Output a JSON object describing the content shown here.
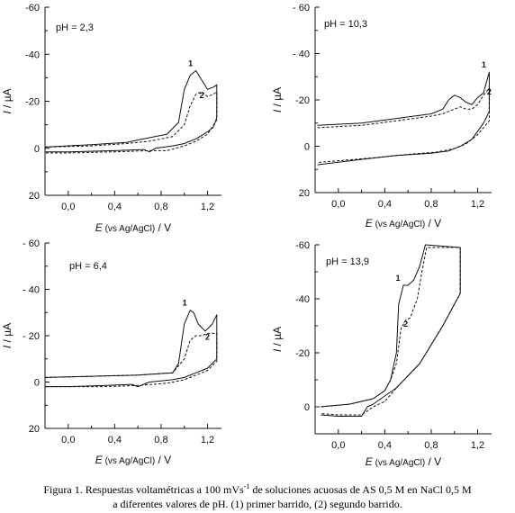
{
  "chart_data": [
    {
      "type": "line",
      "annotation": "pH = 2,3",
      "ylabel_var": "I",
      "ylabel_unit": " / µA",
      "xlabel_var": "E",
      "xlabel_note": " (vs Ag/AgCl)",
      "xlabel_unit": " / V",
      "xlim": [
        -0.2,
        1.32
      ],
      "ylim": [
        20,
        -60
      ],
      "y_ticks": [
        "-60",
        "-40",
        "-20",
        "0",
        "20"
      ],
      "y_tick_values": [
        -60,
        -40,
        -20,
        0,
        20
      ],
      "x_ticks": [
        "0,0",
        "0,4",
        "0,8",
        "1,2"
      ],
      "x_tick_values": [
        0.0,
        0.4,
        0.8,
        1.2
      ],
      "series": [
        {
          "name": "1",
          "style": "solid",
          "x": [
            -0.2,
            0.2,
            0.5,
            0.65,
            0.85,
            0.95,
            1.0,
            1.05,
            1.1,
            1.15,
            1.2,
            1.25,
            1.28,
            1.28,
            1.25,
            1.2,
            1.15,
            1.1,
            1.05,
            1.0,
            0.9,
            0.75,
            0.7,
            0.65,
            0.4,
            0.0,
            -0.2
          ],
          "y": [
            -0.5,
            -1.5,
            -2.5,
            -4,
            -6,
            -11,
            -25,
            -31,
            -33,
            -29,
            -25,
            -26,
            -27,
            -13,
            -9,
            -7,
            -5.5,
            -4,
            -3,
            -2,
            -1,
            0,
            1.5,
            0.5,
            1,
            1.5,
            1.5
          ]
        },
        {
          "name": "2",
          "style": "dashed",
          "x": [
            -0.2,
            0.2,
            0.5,
            0.7,
            0.9,
            1.0,
            1.05,
            1.1,
            1.15,
            1.2,
            1.25,
            1.28,
            1.28,
            1.2,
            1.1,
            1.0,
            0.85,
            0.7,
            0.4,
            0.0,
            -0.2
          ],
          "y": [
            -0.5,
            -1,
            -2,
            -3,
            -5,
            -10,
            -18,
            -23,
            -24,
            -22,
            -23,
            -24,
            -12,
            -6,
            -3,
            -1,
            1,
            1,
            1.5,
            2,
            2
          ]
        }
      ]
    },
    {
      "type": "line",
      "annotation": "pH = 10,3",
      "ylabel_var": "I",
      "ylabel_unit": " / µA",
      "xlabel_var": "E",
      "xlabel_note": " (vs Ag/AgCl)",
      "xlabel_unit": " / V",
      "xlim": [
        -0.2,
        1.32
      ],
      "ylim": [
        20,
        -60
      ],
      "y_ticks": [
        "- 60",
        "- 40",
        "-20",
        "0",
        "20"
      ],
      "y_tick_values": [
        -60,
        -40,
        -20,
        0,
        20
      ],
      "x_ticks": [
        "0,0",
        "0,4",
        "0,8",
        "1,2"
      ],
      "x_tick_values": [
        0.0,
        0.4,
        0.8,
        1.2
      ],
      "series": [
        {
          "name": "1",
          "style": "solid",
          "x": [
            -0.18,
            0.2,
            0.5,
            0.8,
            0.9,
            0.95,
            1.0,
            1.05,
            1.1,
            1.15,
            1.2,
            1.25,
            1.3,
            1.3,
            1.25,
            1.15,
            1.05,
            0.95,
            0.8,
            0.5,
            0.15,
            -0.18
          ],
          "y": [
            -9,
            -10,
            -12,
            -14,
            -16,
            -20,
            -22,
            -21,
            -19,
            -18,
            -21,
            -23,
            -32,
            -15,
            -10,
            -3,
            0,
            2,
            3,
            4,
            6,
            8
          ]
        },
        {
          "name": "2",
          "style": "dashed",
          "x": [
            -0.18,
            0.2,
            0.5,
            0.8,
            0.9,
            1.0,
            1.05,
            1.1,
            1.15,
            1.2,
            1.25,
            1.3,
            1.3,
            1.2,
            1.1,
            1.0,
            0.85,
            0.6,
            0.3,
            -0.18
          ],
          "y": [
            -8,
            -9,
            -11,
            -13,
            -14,
            -16,
            -17,
            -16,
            -16,
            -18,
            -22,
            -25,
            -11,
            -5,
            -1,
            1,
            2.5,
            3.5,
            5,
            7
          ]
        }
      ]
    },
    {
      "type": "line",
      "annotation": "pH = 6,4",
      "ylabel_var": "I",
      "ylabel_unit": " / µA",
      "xlabel_var": "E",
      "xlabel_note": " (vs Ag/AgCl)",
      "xlabel_unit": " / V",
      "xlim": [
        -0.2,
        1.32
      ],
      "ylim": [
        20,
        -60
      ],
      "y_ticks": [
        "- 60",
        "- 40",
        "- 20",
        "0",
        "20"
      ],
      "y_tick_values": [
        -60,
        -40,
        -20,
        0,
        20
      ],
      "x_ticks": [
        "0,0",
        "0,4",
        "0,8",
        "1,2"
      ],
      "x_tick_values": [
        0.0,
        0.4,
        0.8,
        1.2
      ],
      "series": [
        {
          "name": "1",
          "style": "solid",
          "x": [
            -0.2,
            0.2,
            0.6,
            0.9,
            0.95,
            1.0,
            1.05,
            1.08,
            1.12,
            1.18,
            1.24,
            1.28,
            1.28,
            1.2,
            1.1,
            1.0,
            0.9,
            0.7,
            0.6,
            0.55,
            0.3,
            0.0,
            -0.2
          ],
          "y": [
            -2,
            -2.5,
            -3,
            -4,
            -8,
            -25,
            -31,
            -30,
            -25,
            -22,
            -25,
            -29,
            -10,
            -6,
            -4,
            -2,
            -1,
            0,
            2,
            1,
            1.5,
            2,
            2
          ]
        },
        {
          "name": "2",
          "style": "dashed",
          "x": [
            -0.2,
            0.2,
            0.6,
            0.9,
            1.0,
            1.05,
            1.1,
            1.15,
            1.2,
            1.25,
            1.28,
            1.28,
            1.2,
            1.1,
            1.0,
            0.85,
            0.6,
            0.3,
            -0.2
          ],
          "y": [
            -2,
            -2.5,
            -3,
            -4,
            -10,
            -18,
            -20,
            -20,
            -21,
            -21,
            -21,
            -9,
            -5,
            -3,
            -1,
            0.5,
            1.5,
            2,
            2
          ]
        }
      ]
    },
    {
      "type": "line",
      "annotation": "pH = 13,9",
      "ylabel_var": "I",
      "ylabel_unit": " / µA",
      "xlabel_var": "E",
      "xlabel_note": " (vs Ag/AgCl)",
      "xlabel_unit": " / V",
      "xlim": [
        -0.2,
        1.32
      ],
      "ylim": [
        10,
        -60
      ],
      "y_ticks": [
        "-60",
        "-40",
        "-20",
        "0"
      ],
      "y_tick_values": [
        -60,
        -40,
        -20,
        0
      ],
      "x_ticks": [
        "0,0",
        "0,4",
        "0,8",
        "1,2"
      ],
      "x_tick_values": [
        0.0,
        0.4,
        0.8,
        1.2
      ],
      "series": [
        {
          "name": "1",
          "style": "solid",
          "x": [
            -0.15,
            0.1,
            0.3,
            0.4,
            0.45,
            0.5,
            0.52,
            0.56,
            0.6,
            0.65,
            0.7,
            0.75,
            1.05,
            1.05,
            0.9,
            0.7,
            0.5,
            0.3,
            0.25,
            0.2,
            0.0,
            -0.15
          ],
          "y": [
            0,
            -1,
            -3,
            -6,
            -10,
            -20,
            -38,
            -45,
            -45,
            -47,
            -52,
            -60,
            -59,
            -42,
            -30,
            -16,
            -7,
            -1,
            0,
            3.5,
            3.5,
            3
          ]
        },
        {
          "name": "2",
          "style": "dashed",
          "x": [
            -0.15,
            0.1,
            0.3,
            0.4,
            0.45,
            0.5,
            0.54,
            0.58,
            0.62,
            0.68,
            0.72,
            0.76,
            1.05,
            1.05,
            0.9,
            0.7,
            0.5,
            0.4,
            0.3,
            0.2,
            0.0,
            -0.15
          ],
          "y": [
            0,
            -1,
            -3,
            -6,
            -10,
            -16,
            -29,
            -32,
            -33,
            -40,
            -50,
            -59,
            -59,
            -42,
            -30,
            -16,
            -7,
            -2,
            0,
            3,
            3,
            2.5
          ]
        }
      ]
    }
  ],
  "caption": {
    "line1_a": "Figura 1. Respuestas voltamétricas a 100 mVs",
    "line1_sup": "-1",
    "line1_b": " de soluciones acuosas de AS 0,5 M en NaCl 0,5 M",
    "line2": "a diferentes valores de pH. (1) primer barrido, (2) segundo barrido."
  }
}
